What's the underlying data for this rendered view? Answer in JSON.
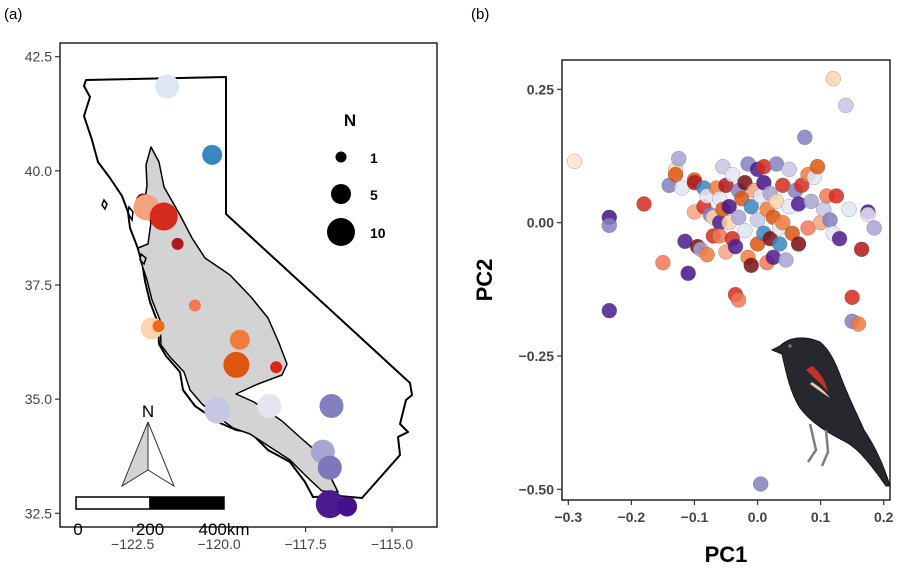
{
  "panels": {
    "a_label": "(a)",
    "b_label": "(b)"
  },
  "map": {
    "north_label": "N",
    "scale_labels": [
      "0",
      "200",
      "400km"
    ],
    "legend_title": "N",
    "legend_labels": [
      "1",
      "5",
      "10"
    ]
  },
  "pca": {
    "xlabel": "PC1",
    "ylabel": "PC2"
  },
  "chart_data": [
    {
      "type": "scatter",
      "title": "",
      "xlabel": "",
      "ylabel": "",
      "xlim": [
        -124.6,
        -113.7
      ],
      "ylim": [
        32.2,
        42.8
      ],
      "x_ticks": [
        -122.5,
        -120.0,
        -117.5,
        -115.0
      ],
      "x_tick_labels": [
        "−122.5",
        "−120.0",
        "−117.5",
        "−115.0"
      ],
      "y_ticks": [
        32.5,
        35.0,
        37.5,
        40.0,
        42.5
      ],
      "y_tick_labels": [
        "32.5",
        "35.0",
        "37.5",
        "40.0",
        "42.5"
      ],
      "grid": false,
      "size_legend": {
        "title": "N",
        "values": [
          1,
          5,
          10
        ],
        "position": "top-right"
      },
      "points": [
        {
          "lon": -121.5,
          "lat": 41.85,
          "n": 8,
          "color": "#dde6f3"
        },
        {
          "lon": -120.2,
          "lat": 40.35,
          "n": 6,
          "color": "#3a86c0"
        },
        {
          "lon": -122.2,
          "lat": 39.35,
          "n": 3,
          "color": "#7a0e17"
        },
        {
          "lon": -122.1,
          "lat": 39.2,
          "n": 9,
          "color": "#f4a380"
        },
        {
          "lon": -121.6,
          "lat": 39.0,
          "n": 10,
          "color": "#d52a1e"
        },
        {
          "lon": -121.2,
          "lat": 38.4,
          "n": 2,
          "color": "#b0161b"
        },
        {
          "lon": -120.7,
          "lat": 37.05,
          "n": 2,
          "color": "#f37757"
        },
        {
          "lon": -121.95,
          "lat": 36.55,
          "n": 7,
          "color": "#fdd4ae"
        },
        {
          "lon": -121.75,
          "lat": 36.6,
          "n": 2,
          "color": "#ec6a1c"
        },
        {
          "lon": -119.4,
          "lat": 36.3,
          "n": 6,
          "color": "#f07b3c"
        },
        {
          "lon": -119.5,
          "lat": 35.75,
          "n": 9,
          "color": "#de5510"
        },
        {
          "lon": -118.35,
          "lat": 35.7,
          "n": 2,
          "color": "#e0221b"
        },
        {
          "lon": -120.05,
          "lat": 34.75,
          "n": 9,
          "color": "#c6c7e2"
        },
        {
          "lon": -118.55,
          "lat": 34.85,
          "n": 8,
          "color": "#e6e4f2"
        },
        {
          "lon": -116.75,
          "lat": 34.85,
          "n": 8,
          "color": "#8380c0"
        },
        {
          "lon": -117.0,
          "lat": 33.85,
          "n": 8,
          "color": "#a7a5d3"
        },
        {
          "lon": -116.8,
          "lat": 33.5,
          "n": 8,
          "color": "#7e78bb"
        },
        {
          "lon": -116.8,
          "lat": 32.7,
          "n": 10,
          "color": "#4b1a8f"
        },
        {
          "lon": -116.3,
          "lat": 32.65,
          "n": 6,
          "color": "#43118a"
        }
      ]
    },
    {
      "type": "scatter",
      "title": "",
      "xlabel": "PC1",
      "ylabel": "PC2",
      "xlim": [
        -0.31,
        0.21
      ],
      "ylim": [
        -0.52,
        0.305
      ],
      "x_ticks": [
        -0.3,
        -0.2,
        -0.1,
        0.0,
        0.1,
        0.2
      ],
      "x_tick_labels": [
        "−0.3",
        "−0.2",
        "−0.1",
        "0.0",
        "0.1",
        "0.2"
      ],
      "y_ticks": [
        -0.5,
        -0.25,
        0.0,
        0.25
      ],
      "y_tick_labels": [
        "−0.50",
        "−0.25",
        "0.00",
        "0.25"
      ],
      "grid": false,
      "points": [
        [
          -0.29,
          0.115,
          "#fde0d0"
        ],
        [
          -0.235,
          0.01,
          "#43118a"
        ],
        [
          -0.235,
          -0.005,
          "#8380c0"
        ],
        [
          -0.235,
          -0.165,
          "#4b1a8f"
        ],
        [
          -0.18,
          0.035,
          "#d52a1e"
        ],
        [
          -0.15,
          -0.075,
          "#f37757"
        ],
        [
          -0.14,
          0.07,
          "#8380c0"
        ],
        [
          -0.13,
          0.1,
          "#fdd4ae"
        ],
        [
          -0.13,
          0.09,
          "#de5510"
        ],
        [
          -0.125,
          0.12,
          "#a7a5d3"
        ],
        [
          -0.12,
          0.065,
          "#dde6f3"
        ],
        [
          -0.115,
          -0.035,
          "#4b1a8f"
        ],
        [
          -0.11,
          -0.095,
          "#43118a"
        ],
        [
          -0.1,
          0.08,
          "#de5510"
        ],
        [
          -0.1,
          0.075,
          "#b0161b"
        ],
        [
          -0.1,
          0.02,
          "#f4a380"
        ],
        [
          -0.095,
          -0.045,
          "#7a0e17"
        ],
        [
          -0.09,
          -0.05,
          "#a7a5d3"
        ],
        [
          -0.085,
          0.065,
          "#3a86c0"
        ],
        [
          -0.085,
          0.03,
          "#d52a1e"
        ],
        [
          -0.08,
          0.05,
          "#e6e4f2"
        ],
        [
          -0.08,
          -0.06,
          "#f07b3c"
        ],
        [
          -0.075,
          0.015,
          "#8380c0"
        ],
        [
          -0.07,
          0.01,
          "#fdd4ae"
        ],
        [
          -0.07,
          -0.025,
          "#d52a1e"
        ],
        [
          -0.065,
          0.065,
          "#f07b3c"
        ],
        [
          -0.06,
          0.045,
          "#dde6f3"
        ],
        [
          -0.06,
          0.0,
          "#4b1a8f"
        ],
        [
          -0.06,
          -0.025,
          "#f37757"
        ],
        [
          -0.055,
          0.105,
          "#c6c7e2"
        ],
        [
          -0.055,
          0.025,
          "#de5510"
        ],
        [
          -0.05,
          0.07,
          "#b0161b"
        ],
        [
          -0.05,
          -0.055,
          "#f4a380"
        ],
        [
          -0.045,
          0.03,
          "#43118a"
        ],
        [
          -0.045,
          0.0,
          "#fdd4ae"
        ],
        [
          -0.04,
          0.09,
          "#e6e4f2"
        ],
        [
          -0.04,
          -0.03,
          "#d52a1e"
        ],
        [
          -0.035,
          -0.045,
          "#4b1a8f"
        ],
        [
          -0.035,
          -0.135,
          "#d52a1e"
        ],
        [
          -0.03,
          -0.145,
          "#f37757"
        ],
        [
          -0.03,
          0.06,
          "#8380c0"
        ],
        [
          -0.03,
          0.01,
          "#a7a5d3"
        ],
        [
          -0.025,
          0.045,
          "#de5510"
        ],
        [
          -0.02,
          -0.015,
          "#dde6f3"
        ],
        [
          -0.02,
          0.075,
          "#7a0e17"
        ],
        [
          -0.015,
          0.11,
          "#8380c0"
        ],
        [
          -0.015,
          -0.065,
          "#f07b3c"
        ],
        [
          -0.01,
          0.03,
          "#3a86c0"
        ],
        [
          -0.01,
          -0.08,
          "#7a0e17"
        ],
        [
          -0.005,
          0.06,
          "#f4a380"
        ],
        [
          0.0,
          0.005,
          "#c6c7e2"
        ],
        [
          0.0,
          -0.04,
          "#de5510"
        ],
        [
          0.0,
          0.1,
          "#4b1a8f"
        ],
        [
          0.005,
          -0.49,
          "#8380c0"
        ],
        [
          0.005,
          0.05,
          "#e6e4f2"
        ],
        [
          0.01,
          -0.02,
          "#3a86c0"
        ],
        [
          0.01,
          0.075,
          "#43118a"
        ],
        [
          0.01,
          0.105,
          "#d52a1e"
        ],
        [
          0.015,
          -0.075,
          "#f37757"
        ],
        [
          0.015,
          0.025,
          "#f07b3c"
        ],
        [
          0.02,
          -0.03,
          "#7a0e17"
        ],
        [
          0.02,
          0.055,
          "#a7a5d3"
        ],
        [
          0.025,
          0.01,
          "#de5510"
        ],
        [
          0.025,
          -0.065,
          "#4b1a8f"
        ],
        [
          0.03,
          0.11,
          "#8380c0"
        ],
        [
          0.03,
          0.04,
          "#fdd4ae"
        ],
        [
          0.035,
          -0.01,
          "#dde6f3"
        ],
        [
          0.035,
          -0.04,
          "#3a86c0"
        ],
        [
          0.04,
          0.07,
          "#d52a1e"
        ],
        [
          0.04,
          0.0,
          "#f07b3c"
        ],
        [
          0.045,
          -0.07,
          "#a7a5d3"
        ],
        [
          0.05,
          0.03,
          "#e6e4f2"
        ],
        [
          0.05,
          0.1,
          "#c6c7e2"
        ],
        [
          0.055,
          -0.02,
          "#de5510"
        ],
        [
          0.06,
          0.06,
          "#8380c0"
        ],
        [
          0.065,
          -0.04,
          "#7a0e17"
        ],
        [
          0.065,
          0.035,
          "#4b1a8f"
        ],
        [
          0.07,
          0.07,
          "#d52a1e"
        ],
        [
          0.075,
          0.16,
          "#8380c0"
        ],
        [
          0.08,
          -0.01,
          "#f37757"
        ],
        [
          0.08,
          0.09,
          "#f07b3c"
        ],
        [
          0.085,
          0.04,
          "#a7a5d3"
        ],
        [
          0.09,
          0.085,
          "#dde6f3"
        ],
        [
          0.095,
          0.105,
          "#de5510"
        ],
        [
          0.1,
          0.0,
          "#f4a380"
        ],
        [
          0.105,
          0.025,
          "#c6c7e2"
        ],
        [
          0.11,
          0.05,
          "#f37757"
        ],
        [
          0.115,
          0.005,
          "#8380c0"
        ],
        [
          0.12,
          -0.02,
          "#e6e4f2"
        ],
        [
          0.12,
          0.27,
          "#fdd4ae"
        ],
        [
          0.125,
          0.05,
          "#d52a1e"
        ],
        [
          0.13,
          -0.03,
          "#4b1a8f"
        ],
        [
          0.14,
          0.22,
          "#c6c7e2"
        ],
        [
          0.145,
          0.025,
          "#dde6f3"
        ],
        [
          0.15,
          -0.14,
          "#d52a1e"
        ],
        [
          0.15,
          -0.185,
          "#8380c0"
        ],
        [
          0.16,
          -0.19,
          "#f07b3c"
        ],
        [
          0.165,
          -0.05,
          "#b0161b"
        ],
        [
          0.175,
          0.02,
          "#43118a"
        ],
        [
          0.175,
          0.015,
          "#e6e4f2"
        ],
        [
          0.185,
          -0.01,
          "#a7a5d3"
        ]
      ]
    }
  ]
}
